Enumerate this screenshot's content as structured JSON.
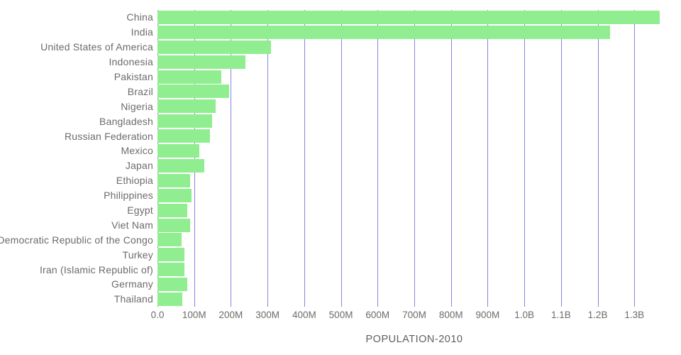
{
  "chart_data": {
    "type": "bar",
    "orientation": "horizontal",
    "xlabel": "POPULATION-2010",
    "ylabel": "",
    "categories": [
      "China",
      "India",
      "United States of America",
      "Indonesia",
      "Pakistan",
      "Brazil",
      "Nigeria",
      "Bangladesh",
      "Russian Federation",
      "Mexico",
      "Japan",
      "Ethiopia",
      "Philippines",
      "Egypt",
      "Viet Nam",
      "Democratic Republic of the Congo",
      "Turkey",
      "Iran (Islamic Republic of)",
      "Germany",
      "Thailand"
    ],
    "values_millions": [
      1369,
      1234,
      309,
      240,
      174,
      196,
      159,
      148,
      143,
      114,
      128,
      88,
      93,
      82,
      88,
      66,
      73,
      74,
      82,
      67
    ],
    "x_ticks": [
      {
        "value_millions": 0,
        "label": "0.0"
      },
      {
        "value_millions": 100,
        "label": "100M"
      },
      {
        "value_millions": 200,
        "label": "200M"
      },
      {
        "value_millions": 300,
        "label": "300M"
      },
      {
        "value_millions": 400,
        "label": "400M"
      },
      {
        "value_millions": 500,
        "label": "500M"
      },
      {
        "value_millions": 600,
        "label": "600M"
      },
      {
        "value_millions": 700,
        "label": "700M"
      },
      {
        "value_millions": 800,
        "label": "800M"
      },
      {
        "value_millions": 900,
        "label": "900M"
      },
      {
        "value_millions": 1000,
        "label": "1.0B"
      },
      {
        "value_millions": 1100,
        "label": "1.1B"
      },
      {
        "value_millions": 1200,
        "label": "1.2B"
      },
      {
        "value_millions": 1300,
        "label": "1.3B"
      }
    ],
    "xlim_millions": [
      0,
      1400
    ],
    "grid": true,
    "legend": false,
    "bar_color": "#90ee90",
    "gridline_color": "#8585e0",
    "text_color": "#6b6b6b",
    "title_color": "#5f5f5f"
  }
}
